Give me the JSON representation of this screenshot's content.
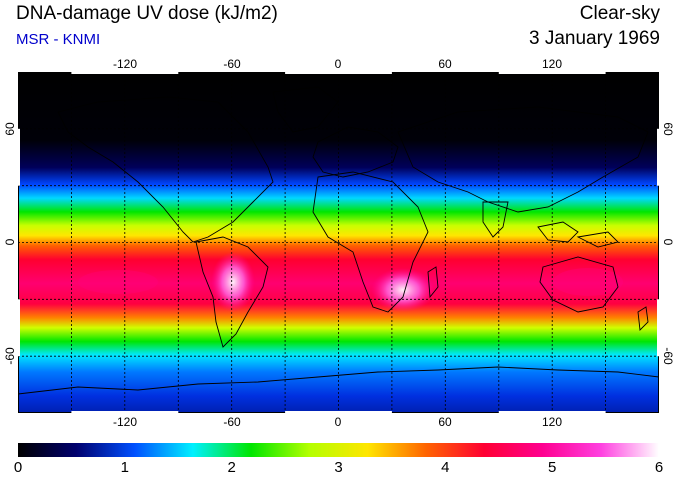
{
  "header": {
    "title": "DNA-damage UV dose (kJ/m2)",
    "source": "MSR - KNMI",
    "condition": "Clear-sky",
    "date": "3 January 1969"
  },
  "map": {
    "lon_ticks": [
      "-120",
      "-60",
      "0",
      "60",
      "120"
    ],
    "lat_ticks": [
      "60",
      "0",
      "-60"
    ],
    "lon_range": [
      -180,
      180
    ],
    "lat_range": [
      -90,
      90
    ]
  },
  "colorbar": {
    "ticks": [
      "0",
      "1",
      "2",
      "3",
      "4",
      "5",
      "6"
    ],
    "range": [
      0,
      6
    ],
    "stops": [
      "#000000",
      "#00006e",
      "#0050ff",
      "#00f0ff",
      "#00e600",
      "#b4ff00",
      "#ffe600",
      "#ff6400",
      "#ff0033",
      "#ff0090",
      "#ff40e0",
      "#ffffff"
    ]
  }
}
